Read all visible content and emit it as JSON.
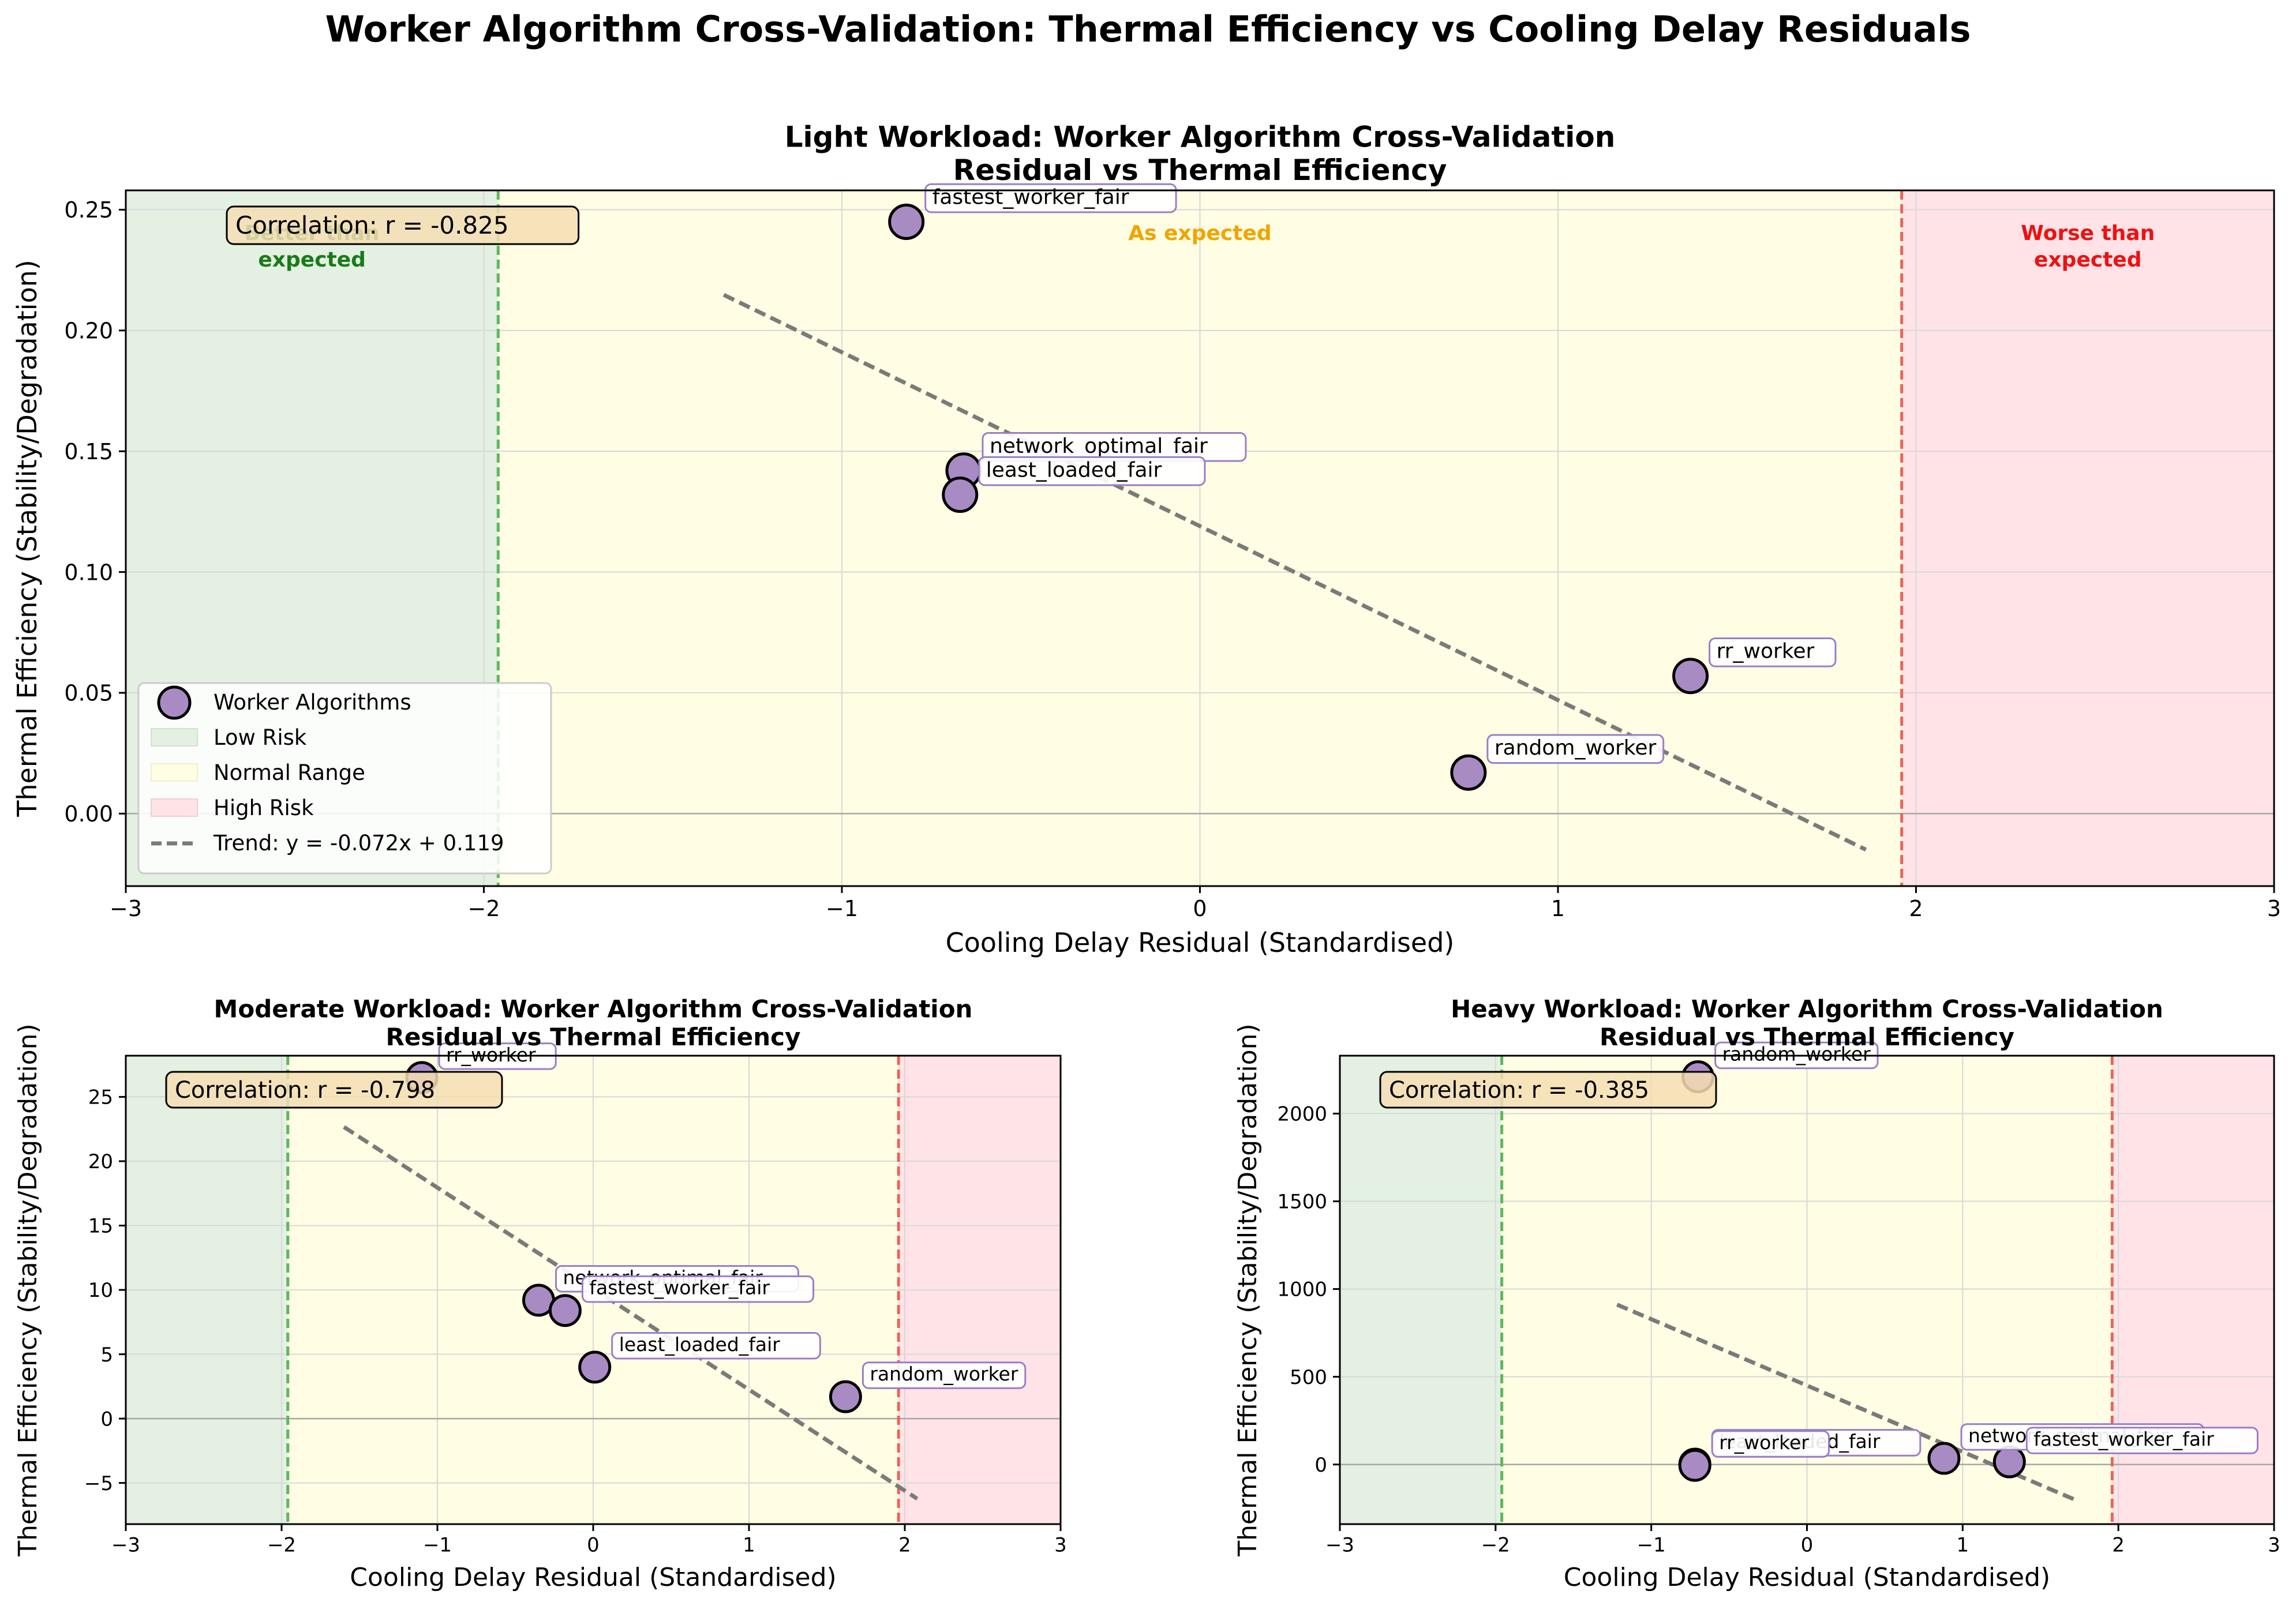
{
  "figure": {
    "title": "Worker Algorithm Cross-Validation: Thermal Efficiency vs Cooling Delay Residuals"
  },
  "colors": {
    "point_fill": "#a98bc4",
    "point_edge": "#000000",
    "label_box_edge": "#9a7ec7",
    "low_risk_zone": "#e3f0e2",
    "normal_zone": "#fffde3",
    "high_risk_zone": "#ffe3e7",
    "low_threshold_line": "#5cb85c",
    "high_threshold_line": "#e8655a",
    "trend_line": "#7a7a7a",
    "correlation_box": "#f5deb3",
    "zone_text_better": "#1a7a1a",
    "zone_text_expected": "#f0a500",
    "zone_text_worse": "#ee1111"
  },
  "chart_data": [
    {
      "type": "scatter",
      "title": "Light Workload: Worker Algorithm Cross-Validation\nResidual vs Thermal Efficiency",
      "xlabel": "Cooling Delay Residual (Standardised)",
      "ylabel": "Thermal Efficiency (Stability/Degradation)",
      "xlim": [
        -3,
        3
      ],
      "ylim": [
        -0.03,
        0.258
      ],
      "xticks": [
        -3,
        -2,
        -1,
        0,
        1,
        2,
        3
      ],
      "xtick_labels": [
        "−3",
        "−2",
        "−1",
        "0",
        "1",
        "2",
        "3"
      ],
      "yticks": [
        0.0,
        0.05,
        0.1,
        0.15,
        0.2,
        0.25
      ],
      "ytick_labels": [
        "0.00",
        "0.05",
        "0.10",
        "0.15",
        "0.20",
        "0.25"
      ],
      "grid": true,
      "zones": {
        "low_max": -1.96,
        "high_min": 1.96
      },
      "zone_labels": {
        "better": "Better than\nexpected",
        "expected": "As expected",
        "worse": "Worse than\nexpected"
      },
      "points": [
        {
          "name": "fastest_worker_fair",
          "x": -0.82,
          "y": 0.245
        },
        {
          "name": "network_optimal_fair",
          "x": -0.66,
          "y": 0.142
        },
        {
          "name": "least_loaded_fair",
          "x": -0.67,
          "y": 0.132
        },
        {
          "name": "rr_worker",
          "x": 1.37,
          "y": 0.057
        },
        {
          "name": "random_worker",
          "x": 0.75,
          "y": 0.017
        }
      ],
      "trend": {
        "x_start": -1.33,
        "x_end": 1.86,
        "slope": -0.072,
        "intercept": 0.119
      },
      "correlation_text": "Correlation: r = -0.825",
      "legend": {
        "position": "lower-left",
        "entries": [
          "Worker Algorithms",
          "Low Risk",
          "Normal Range",
          "High Risk",
          "Trend: y = -0.072x + 0.119"
        ]
      }
    },
    {
      "type": "scatter",
      "title": "Moderate Workload: Worker Algorithm Cross-Validation\nResidual vs Thermal Efficiency",
      "xlabel": "Cooling Delay Residual (Standardised)",
      "ylabel": "Thermal Efficiency (Stability/Degradation)",
      "xlim": [
        -3,
        3
      ],
      "ylim": [
        -8.2,
        28.2
      ],
      "xticks": [
        -3,
        -2,
        -1,
        0,
        1,
        2,
        3
      ],
      "xtick_labels": [
        "−3",
        "−2",
        "−1",
        "0",
        "1",
        "2",
        "3"
      ],
      "yticks": [
        -5,
        0,
        5,
        10,
        15,
        20,
        25
      ],
      "ytick_labels": [
        "−5",
        "0",
        "5",
        "10",
        "15",
        "20",
        "25"
      ],
      "grid": true,
      "zones": {
        "low_max": -1.96,
        "high_min": 1.96
      },
      "points": [
        {
          "name": "rr_worker",
          "x": -1.1,
          "y": 26.5
        },
        {
          "name": "network_optimal_fair",
          "x": -0.35,
          "y": 9.2
        },
        {
          "name": "fastest_worker_fair",
          "x": -0.18,
          "y": 8.4
        },
        {
          "name": "least_loaded_fair",
          "x": 0.01,
          "y": 4.0
        },
        {
          "name": "random_worker",
          "x": 1.62,
          "y": 1.7
        }
      ],
      "trend": {
        "x_start": -1.6,
        "x_end": 2.08,
        "slope": -7.85,
        "intercept": 10.1
      },
      "correlation_text": "Correlation: r = -0.798"
    },
    {
      "type": "scatter",
      "title": "Heavy Workload: Worker Algorithm Cross-Validation\nResidual vs Thermal Efficiency",
      "xlabel": "Cooling Delay Residual (Standardised)",
      "ylabel": "Thermal Efficiency (Stability/Degradation)",
      "xlim": [
        -3,
        3
      ],
      "ylim": [
        -340,
        2330
      ],
      "xticks": [
        -3,
        -2,
        -1,
        0,
        1,
        2,
        3
      ],
      "xtick_labels": [
        "−3",
        "−2",
        "−1",
        "0",
        "1",
        "2",
        "3"
      ],
      "yticks": [
        0,
        500,
        1000,
        1500,
        2000
      ],
      "ytick_labels": [
        "0",
        "500",
        "1000",
        "1500",
        "2000"
      ],
      "grid": true,
      "zones": {
        "low_max": -1.96,
        "high_min": 1.96
      },
      "points": [
        {
          "name": "random_worker",
          "x": -0.7,
          "y": 2210
        },
        {
          "name": "least_loaded_fair",
          "x": -0.72,
          "y": 2
        },
        {
          "name": "rr_worker",
          "x": -0.72,
          "y": -5
        },
        {
          "name": "network_optimal_fair",
          "x": 0.88,
          "y": 35
        },
        {
          "name": "fastest_worker_fair",
          "x": 1.3,
          "y": 15
        }
      ],
      "trend": {
        "x_start": -1.22,
        "x_end": 1.74,
        "slope": -378,
        "intercept": 450
      },
      "correlation_text": "Correlation: r = -0.385"
    }
  ]
}
